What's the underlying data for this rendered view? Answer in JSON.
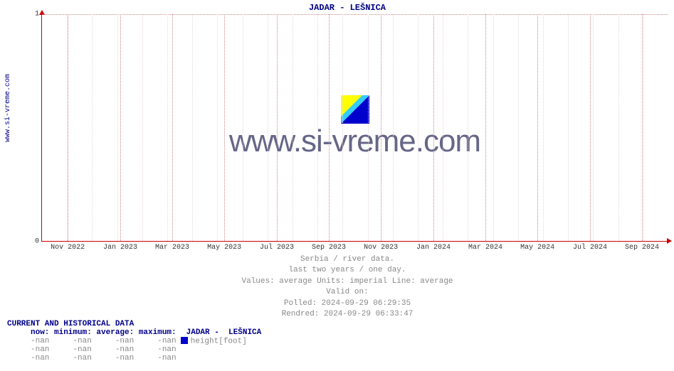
{
  "side_label": "www.si-vreme.com",
  "chart": {
    "title": "JADAR -  LEŠNICA",
    "title_color": "#000088",
    "axis_color": "#cc0000",
    "grid_color_major": "#cc8888",
    "grid_color_minor": "#e8d8d8",
    "background": "#ffffff",
    "ylim": [
      0,
      1
    ],
    "yticks": [
      {
        "pos": 0.0,
        "label": "0"
      },
      {
        "pos": 1.0,
        "label": "1"
      }
    ],
    "xticks": [
      {
        "pos": 0.041,
        "label": "Nov 2022"
      },
      {
        "pos": 0.125,
        "label": "Jan 2023"
      },
      {
        "pos": 0.208,
        "label": "Mar 2023"
      },
      {
        "pos": 0.291,
        "label": "May 2023"
      },
      {
        "pos": 0.375,
        "label": "Jul 2023"
      },
      {
        "pos": 0.458,
        "label": "Sep 2023"
      },
      {
        "pos": 0.541,
        "label": "Nov 2023"
      },
      {
        "pos": 0.625,
        "label": "Jan 2024"
      },
      {
        "pos": 0.708,
        "label": "Mar 2024"
      },
      {
        "pos": 0.791,
        "label": "May 2024"
      },
      {
        "pos": 0.875,
        "label": "Jul 2024"
      },
      {
        "pos": 0.958,
        "label": "Sep 2024"
      }
    ],
    "month_grid_count": 25,
    "watermark_text": "www.si-vreme.com",
    "watermark_color": "#666688"
  },
  "subtitle": {
    "line1": "Serbia / river data.",
    "line2": "last two years / one day.",
    "line3": "Values: average  Units: imperial  Line: average",
    "line4": "Valid on:",
    "line5": "Polled: 2024-09-29 06:29:35",
    "line6": "Rendred: 2024-09-29 06:33:47",
    "color": "#888888"
  },
  "table": {
    "heading": "CURRENT AND HISTORICAL DATA",
    "heading_color": "#000088",
    "columns": [
      "now:",
      "minimum:",
      "average:",
      "maximum:"
    ],
    "col_width_ch": 9,
    "series_name": "JADAR -  LEŠNICA",
    "series_swatch": "#0000cc",
    "series_unit": "height[foot]",
    "value_color": "#888888",
    "rows": [
      [
        "-nan",
        "-nan",
        "-nan",
        "-nan"
      ],
      [
        "-nan",
        "-nan",
        "-nan",
        "-nan"
      ],
      [
        "-nan",
        "-nan",
        "-nan",
        "-nan"
      ]
    ]
  }
}
